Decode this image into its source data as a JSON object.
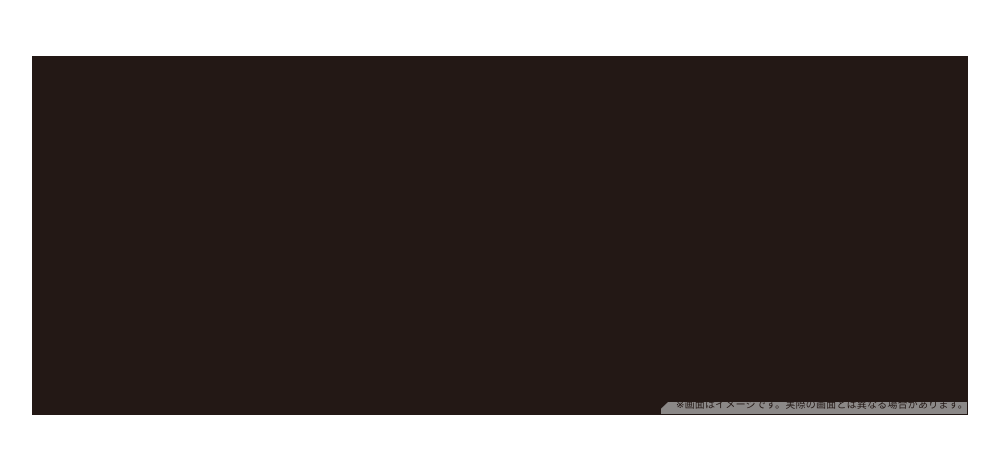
{
  "page": {
    "background_color": "#ffffff"
  },
  "hero_image": {
    "background_color": "#231815",
    "caption": {
      "text": "※画面はイメージです。実際の画面とは異なる場合があります。",
      "text_color": "#231815",
      "band_color": "#8b8887"
    }
  }
}
